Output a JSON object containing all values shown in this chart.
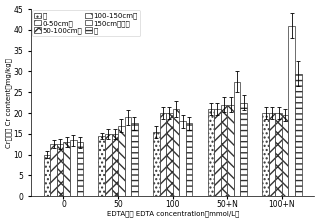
{
  "groups": [
    "0",
    "50",
    "100",
    "50+N",
    "100+N"
  ],
  "series_labels": [
    "根",
    "0-50cm茎",
    "50-100cm茎",
    "100-150cm茎",
    "150cm以上茎",
    "叶"
  ],
  "values": [
    [
      10.0,
      12.5,
      12.5,
      13.0,
      13.5,
      13.0
    ],
    [
      14.5,
      15.0,
      15.0,
      17.0,
      19.0,
      17.5
    ],
    [
      15.5,
      20.0,
      20.0,
      21.0,
      18.0,
      17.5
    ],
    [
      21.0,
      21.0,
      22.0,
      22.0,
      27.5,
      22.5
    ],
    [
      20.0,
      20.0,
      20.0,
      19.5,
      41.0,
      29.5
    ]
  ],
  "errors": [
    [
      0.8,
      1.0,
      1.2,
      1.2,
      1.3,
      1.3
    ],
    [
      0.8,
      1.2,
      1.2,
      1.5,
      1.8,
      1.5
    ],
    [
      1.5,
      1.5,
      1.5,
      2.0,
      1.5,
      1.5
    ],
    [
      1.5,
      1.5,
      1.8,
      1.8,
      2.5,
      1.8
    ],
    [
      1.5,
      1.5,
      1.5,
      1.5,
      3.0,
      3.0
    ]
  ],
  "xlabel": "EDTA浓度 EDTA concentration（mmol/L）",
  "ylabel": "Cr的含量 Cr content（mg/kg）",
  "ylim": [
    0,
    45
  ],
  "yticks": [
    0,
    5,
    10,
    15,
    20,
    25,
    30,
    35,
    40,
    45
  ],
  "bar_width": 0.12,
  "axis_fontsize": 5.5,
  "legend_fontsize": 5.0
}
